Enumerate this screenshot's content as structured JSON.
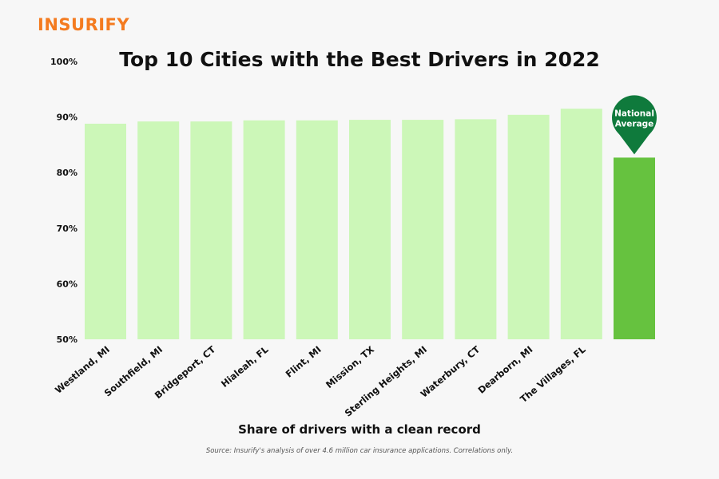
{
  "brand": {
    "logo_text": "INSURIFY"
  },
  "chart_data": {
    "type": "bar",
    "title": "Top 10 Cities with the Best Drivers in 2022",
    "xlabel": "Share of drivers with a clean record",
    "ylabel": "",
    "ylim": [
      50,
      100
    ],
    "yticks": [
      100,
      90,
      80,
      70,
      60,
      50
    ],
    "ytick_labels": [
      "100%",
      "90%",
      "80%",
      "70%",
      "60%",
      "50%"
    ],
    "categories": [
      "Westland, MI",
      "Southfield, MI",
      "Bridgeport, CT",
      "Hialeah, FL",
      "Flint, MI",
      "Mission, TX",
      "Sterling Heights, MI",
      "Waterbury, CT",
      "Dearborn, MI",
      "The Villages, FL",
      ""
    ],
    "values": [
      88.8,
      89.2,
      89.2,
      89.4,
      89.4,
      89.5,
      89.5,
      89.6,
      90.4,
      91.5,
      82.7
    ],
    "grid": false,
    "colors": {
      "city_bar": "#ccf7b8",
      "national_bar": "#66c23f",
      "marker": "#0f7a3c"
    },
    "annotations": [
      {
        "text_line1": "National",
        "text_line2": "Average"
      }
    ]
  },
  "footer": {
    "source": "Source: Insurify's analysis of over 4.6 million car insurance applications. Correlations only."
  }
}
